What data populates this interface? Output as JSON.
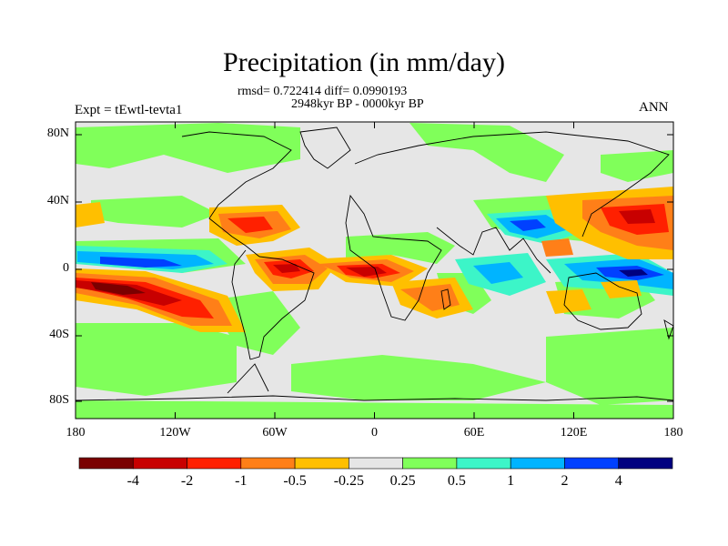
{
  "title": "Precipitation (in mm/day)",
  "stats_line": "rmsd= 0.722414 diff= 0.0990193",
  "period": "2948kyr BP - 0000kyr BP",
  "experiment_label": "Expt = tEwtl-tevta1",
  "season": "ANN",
  "y_axis_labels": [
    "80N",
    "40N",
    "0",
    "40S",
    "80S"
  ],
  "x_axis_labels": [
    "180",
    "120W",
    "60W",
    "0",
    "60E",
    "120E",
    "180"
  ],
  "colorbar": {
    "labels": [
      "-4",
      "-2",
      "-1",
      "-0.5",
      "-0.25",
      "0.25",
      "0.5",
      "1",
      "2",
      "4"
    ],
    "colors": [
      "#7a0000",
      "#c80000",
      "#ff2000",
      "#ff7f18",
      "#ffbf00",
      "#e6e6e6",
      "#80ff5a",
      "#3cf5c8",
      "#00b4ff",
      "#0040ff",
      "#000080"
    ]
  },
  "map_colors": {
    "background": "#e6e6e6",
    "strong_dry": "#7a0000",
    "dry": "#c80000",
    "dry_mid": "#ff2000",
    "dry_light": "#ff7f18",
    "dry_faint": "#ffbf00",
    "wet_faint": "#80ff5a",
    "wet_light": "#3cf5c8",
    "wet_mid": "#00b4ff",
    "wet": "#0040ff",
    "strong_wet": "#000080",
    "coastline": "#000000"
  }
}
